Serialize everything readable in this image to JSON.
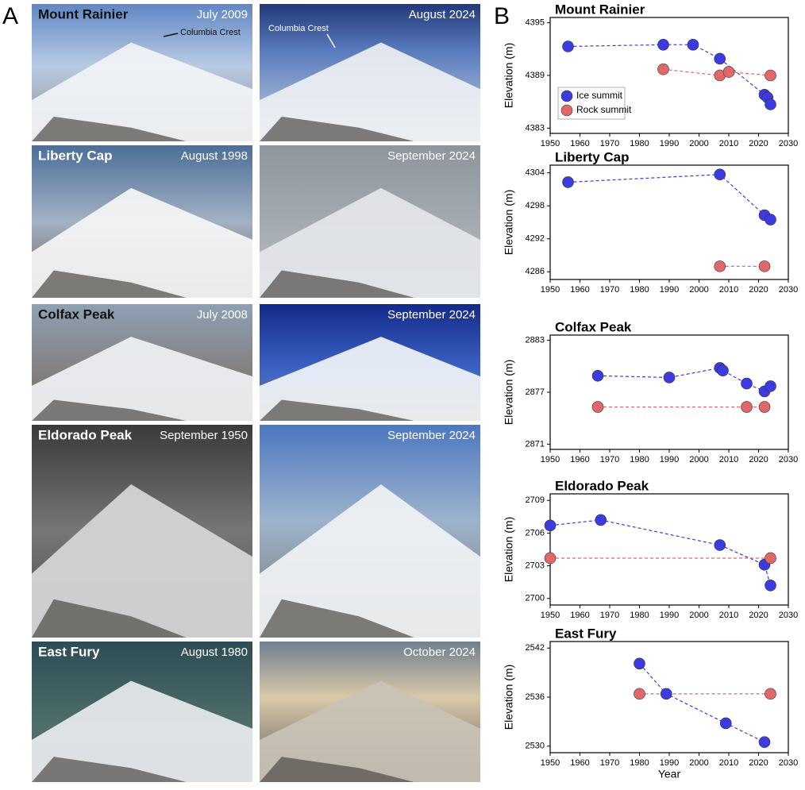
{
  "panels": {
    "a": "A",
    "b": "B"
  },
  "photos": {
    "rows": [
      {
        "name": "Mount Rainier",
        "left": {
          "date": "July 2009",
          "annotation": "Columbia Crest"
        },
        "right": {
          "date": "August 2024",
          "annotation": "Columbia Crest"
        }
      },
      {
        "name": "Liberty Cap",
        "left": {
          "date": "August 1998"
        },
        "right": {
          "date": "September 2024"
        }
      },
      {
        "name": "Colfax Peak",
        "left": {
          "date": "July 2008"
        },
        "right": {
          "date": "September 2024"
        }
      },
      {
        "name": "Eldorado Peak",
        "left": {
          "date": "September 1950"
        },
        "right": {
          "date": "September 2024"
        }
      },
      {
        "name": "East Fury",
        "left": {
          "date": "August 1980"
        },
        "right": {
          "date": "October 2024"
        }
      }
    ]
  },
  "chart_data": [
    {
      "type": "scatter",
      "title": "Mount Rainier",
      "y_label": "Elevation (m)",
      "xlim": [
        1950,
        2030
      ],
      "xticks": [
        1950,
        1960,
        1970,
        1980,
        1990,
        2000,
        2010,
        2020,
        2030
      ],
      "ylim": [
        4382.4,
        4395.6
      ],
      "yticks": [
        4383,
        4389,
        4395
      ],
      "legend": "lower left",
      "series": [
        {
          "name": "Ice summit",
          "color": "#3b3be0",
          "x": [
            1956,
            1988,
            1998,
            2007,
            2022,
            2023,
            2024
          ],
          "values": [
            4392.3,
            4392.5,
            4392.5,
            4390.9,
            4386.8,
            4386.5,
            4385.7
          ]
        },
        {
          "name": "Rock summit",
          "color": "#e06868",
          "x": [
            1988,
            2007,
            2010,
            2024
          ],
          "values": [
            4389.7,
            4389.0,
            4389.4,
            4389.0
          ]
        }
      ]
    },
    {
      "type": "scatter",
      "title": "Liberty Cap",
      "y_label": "Elevation (m)",
      "xlim": [
        1950,
        2030
      ],
      "xticks": [
        1950,
        1960,
        1970,
        1980,
        1990,
        2000,
        2010,
        2020,
        2030
      ],
      "ylim": [
        4284.6,
        4305.4
      ],
      "yticks": [
        4286,
        4292,
        4298,
        4304
      ],
      "series": [
        {
          "color": "#3b3be0",
          "x": [
            1956,
            2007,
            2022,
            2024
          ],
          "values": [
            4302.3,
            4303.7,
            4296.3,
            4295.5
          ]
        },
        {
          "color": "#e06868",
          "x": [
            2007,
            2022
          ],
          "values": [
            4287.0,
            4287.0
          ]
        }
      ]
    },
    {
      "type": "scatter",
      "title": "Colfax Peak",
      "y_label": "Elevation (m)",
      "xlim": [
        1950,
        2030
      ],
      "xticks": [
        1950,
        1960,
        1970,
        1980,
        1990,
        2000,
        2010,
        2020,
        2030
      ],
      "ylim": [
        2870.4,
        2883.6
      ],
      "yticks": [
        2871,
        2877,
        2883
      ],
      "series": [
        {
          "color": "#3b3be0",
          "x": [
            1966,
            1990,
            2007,
            2008,
            2016,
            2022,
            2024
          ],
          "values": [
            2878.9,
            2878.7,
            2879.8,
            2879.5,
            2878.0,
            2877.1,
            2877.7
          ]
        },
        {
          "color": "#e06868",
          "x": [
            1966,
            2016,
            2022
          ],
          "values": [
            2875.3,
            2875.3,
            2875.3
          ]
        }
      ]
    },
    {
      "type": "scatter",
      "title": "Eldorado Peak",
      "y_label": "Elevation (m)",
      "xlim": [
        1950,
        2030
      ],
      "xticks": [
        1950,
        1960,
        1970,
        1980,
        1990,
        2000,
        2010,
        2020,
        2030
      ],
      "ylim": [
        2699.4,
        2709.6
      ],
      "yticks": [
        2700,
        2703,
        2706,
        2709
      ],
      "series": [
        {
          "color": "#3b3be0",
          "x": [
            1950,
            1967,
            2007,
            2022,
            2024
          ],
          "values": [
            2706.7,
            2707.2,
            2704.9,
            2703.1,
            2701.2
          ]
        },
        {
          "color": "#e06868",
          "x": [
            1950,
            2024
          ],
          "values": [
            2703.7,
            2703.7
          ]
        }
      ]
    },
    {
      "type": "scatter",
      "title": "East Fury",
      "y_label": "Elevation (m)",
      "x_label": "Year",
      "xlim": [
        1950,
        2030
      ],
      "xticks": [
        1950,
        1960,
        1970,
        1980,
        1990,
        2000,
        2010,
        2020,
        2030
      ],
      "ylim": [
        2529.2,
        2542.8
      ],
      "yticks": [
        2530,
        2536,
        2542
      ],
      "series": [
        {
          "color": "#3b3be0",
          "x": [
            1980,
            1989,
            2009,
            2022
          ],
          "values": [
            2540.1,
            2536.4,
            2532.8,
            2530.5
          ]
        },
        {
          "color": "#e06868",
          "x": [
            1980,
            2024
          ],
          "values": [
            2536.4,
            2536.4
          ]
        }
      ]
    }
  ]
}
